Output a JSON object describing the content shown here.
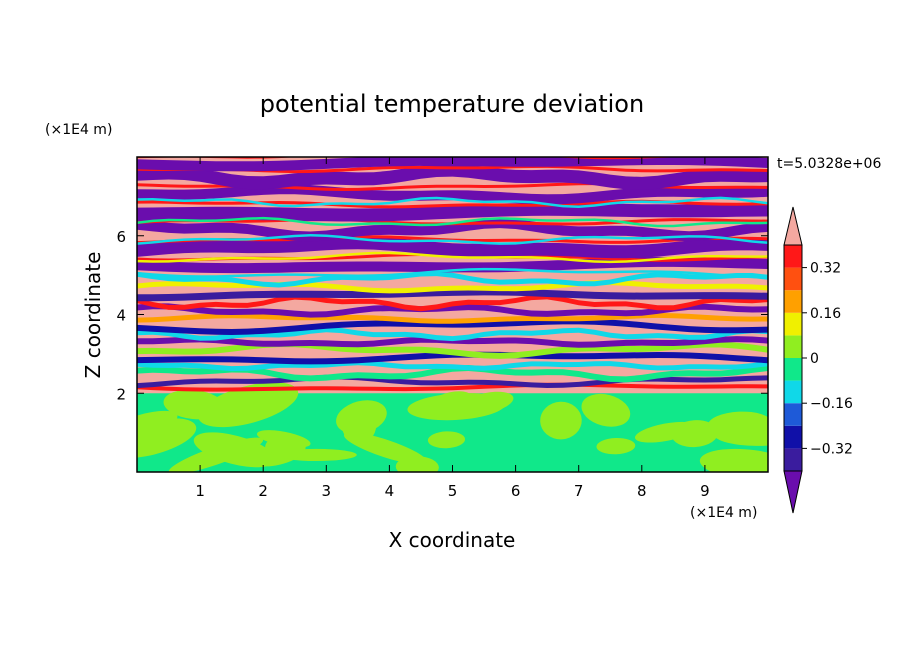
{
  "chart_data": {
    "type": "heatmap",
    "title": "potential temperature deviation",
    "xlabel": "X coordinate",
    "ylabel": "Z coordinate",
    "x_unit": "(×1E4 m)",
    "y_unit": "(×1E4 m)",
    "time_label": "t=5.0328e+06",
    "xlim": [
      0,
      10
    ],
    "ylim": [
      0,
      8
    ],
    "x_ticks": [
      "1",
      "2",
      "3",
      "4",
      "5",
      "6",
      "7",
      "8",
      "9"
    ],
    "y_ticks": [
      "2",
      "4",
      "6"
    ],
    "colorbar": {
      "labels": [
        "0.32",
        "0.16",
        "0",
        "−0.16",
        "−0.32"
      ],
      "label_values": [
        0.32,
        0.16,
        0,
        -0.16,
        -0.32
      ],
      "levels": [
        -0.4,
        -0.32,
        -0.24,
        -0.16,
        -0.08,
        0,
        0.08,
        0.16,
        0.24,
        0.32,
        0.4
      ],
      "colors": [
        "#6a0dad",
        "#3a1c9e",
        "#1010a8",
        "#1e5ad8",
        "#10d8e8",
        "#10e88a",
        "#90ee20",
        "#f0f000",
        "#ffa000",
        "#ff5010",
        "#ff1818",
        "#f4a8a0"
      ]
    },
    "description_bands": [
      {
        "z_range": [
          0,
          2
        ],
        "field": "near-zero values, green and light-green turbulent patches"
      },
      {
        "z_range": [
          2,
          5
        ],
        "field": "mixed layer with alternating negative and positive thin bands"
      },
      {
        "z_range": [
          5,
          8
        ],
        "field": "strong alternating bands of high positive (pink) and strong negative (purple)"
      }
    ]
  }
}
